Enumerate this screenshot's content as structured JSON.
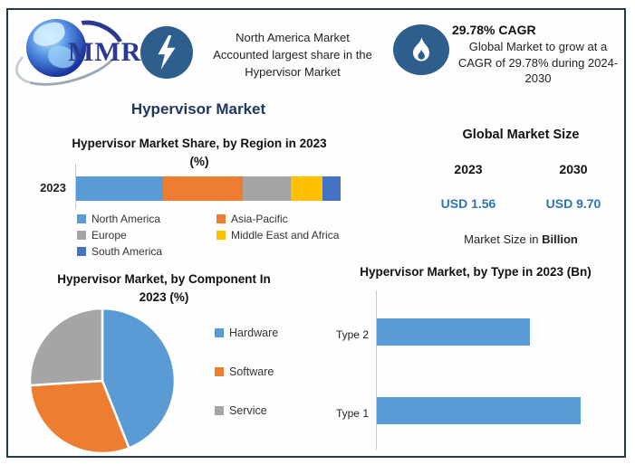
{
  "colors": {
    "frame_border": "#26394a",
    "accent_navy": "#1F3864",
    "value_blue": "#2E74B5",
    "icon_circle_blue": "#2E5E8C",
    "logo_text_blue": "#2B3990",
    "bar_blue": "#5B9BD5"
  },
  "header": {
    "logo": {
      "icon": "globe-logo-icon",
      "text": "MMR"
    },
    "banner1": {
      "icon": "lightning-icon",
      "full_text": "North America Market Accounted largest share in the Hypervisor Market",
      "lines": [
        "North America Market",
        "Accounted largest share in the",
        "Hypervisor Market"
      ]
    },
    "banner2": {
      "icon": "flame-icon",
      "title": "29.78% CAGR",
      "full_text": "Global Market to grow at a CAGR of 29.78% during 2024-2030",
      "lines": [
        "Global Market to grow at a",
        "CAGR of 29.78% during 2024-",
        "2030"
      ]
    }
  },
  "page_title": "Hypervisor Market",
  "market_size": {
    "title": "Global Market Size",
    "year_start": "2023",
    "year_end": "2030",
    "value_start": "USD 1.56",
    "value_end": "USD 9.70",
    "note_prefix": "Market Size in ",
    "note_bold": "Billion"
  },
  "chart_data": [
    {
      "type": "bar",
      "subtype": "stacked-horizontal",
      "title": "Hypervisor Market Share, by Region in 2023 (%)",
      "title_lines": [
        "Hypervisor Market Share, by Region in 2023",
        "(%)"
      ],
      "categories": [
        "2023"
      ],
      "series": [
        {
          "name": "North America",
          "color": "#5B9BD5",
          "values": [
            33
          ]
        },
        {
          "name": "Asia-Pacific",
          "color": "#ED7D31",
          "values": [
            30
          ]
        },
        {
          "name": "Europe",
          "color": "#A5A5A5",
          "values": [
            18
          ]
        },
        {
          "name": "Middle East and Africa",
          "color": "#FFC000",
          "values": [
            12
          ]
        },
        {
          "name": "South America",
          "color": "#4472C4",
          "values": [
            7
          ]
        }
      ],
      "xlim": [
        0,
        100
      ],
      "legend_position": "bottom"
    },
    {
      "type": "pie",
      "title": "Hypervisor Market, by Component In 2023 (%)",
      "title_lines": [
        "Hypervisor Market, by Component In",
        "2023 (%)"
      ],
      "labels": [
        "Hardware",
        "Software",
        "Service"
      ],
      "values": [
        44,
        30,
        26
      ],
      "colors": [
        "#5B9BD5",
        "#ED7D31",
        "#A5A5A5"
      ],
      "start_angle_deg": -90,
      "direction": "clockwise",
      "legend_position": "right"
    },
    {
      "type": "bar",
      "subtype": "horizontal",
      "title": "Hypervisor Market, by Type in 2023 (Bn)",
      "title_lines": [
        "Hypervisor Market, by Type in 2023 (Bn)"
      ],
      "categories": [
        "Type 2",
        "Type 1"
      ],
      "values": [
        0.67,
        0.89
      ],
      "color": "#5B9BD5",
      "xlim": [
        0,
        1.05
      ]
    }
  ]
}
